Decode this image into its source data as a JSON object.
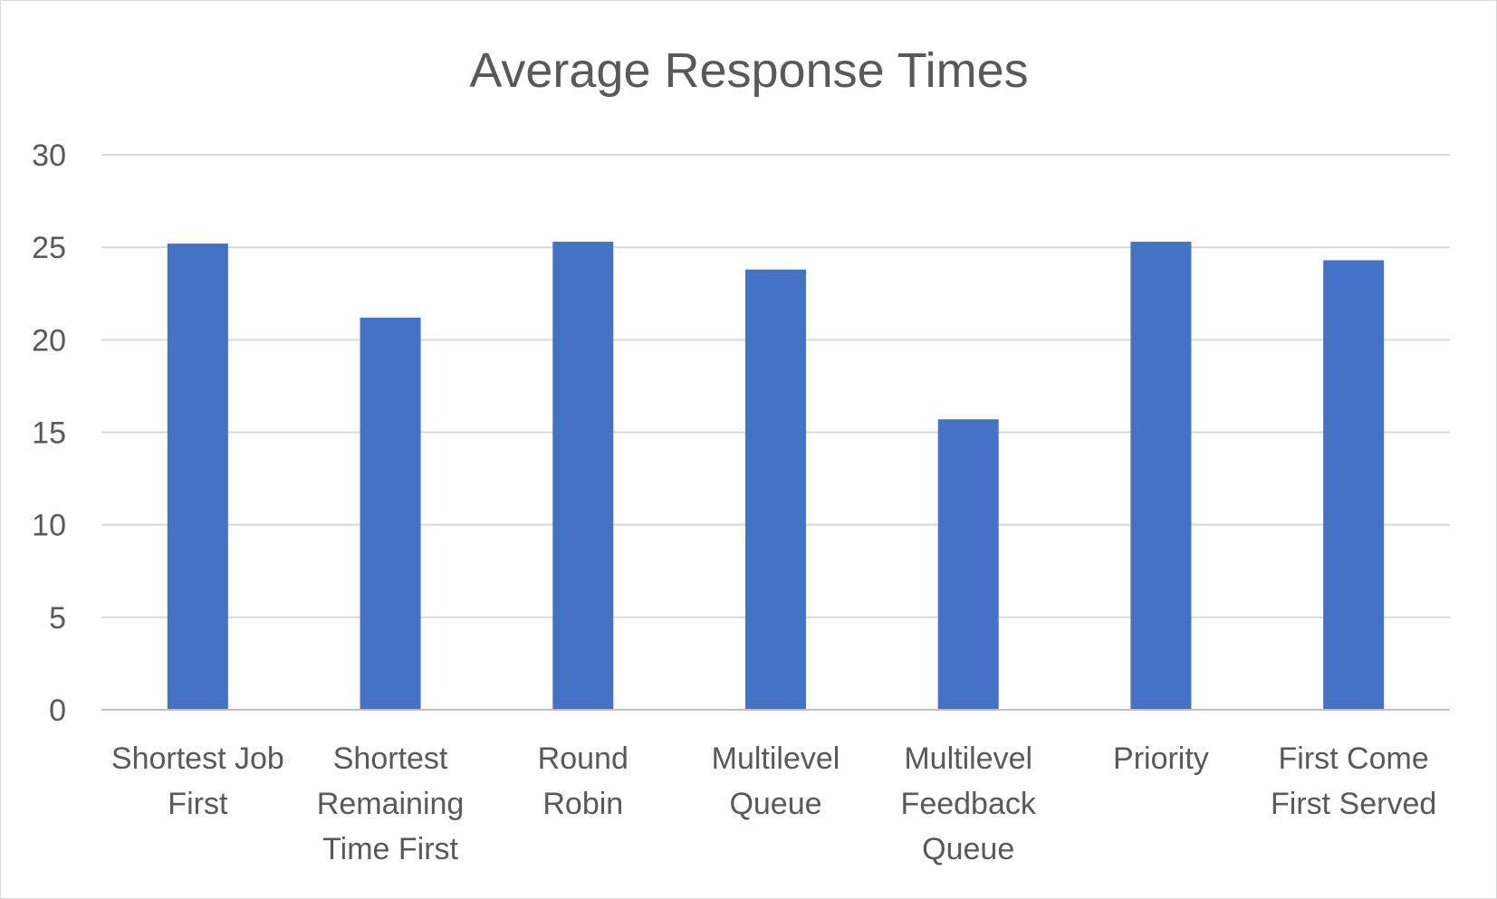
{
  "chart_data": {
    "type": "bar",
    "title": "Average Response Times",
    "xlabel": "",
    "ylabel": "",
    "categories": [
      [
        "Shortest Job",
        "First"
      ],
      [
        "Shortest",
        "Remaining",
        "Time First"
      ],
      [
        "Round",
        "Robin"
      ],
      [
        "Multilevel",
        "Queue"
      ],
      [
        "Multilevel",
        "Feedback",
        "Queue"
      ],
      [
        "Priority"
      ],
      [
        "First Come",
        "First Served"
      ]
    ],
    "values": [
      25.2,
      21.2,
      25.3,
      23.8,
      15.7,
      25.3,
      24.3
    ],
    "ylim": [
      0,
      30
    ],
    "yticks": [
      0,
      5,
      10,
      15,
      20,
      25,
      30
    ],
    "grid": true,
    "legend": "none",
    "bar_color": "#4472c4"
  }
}
